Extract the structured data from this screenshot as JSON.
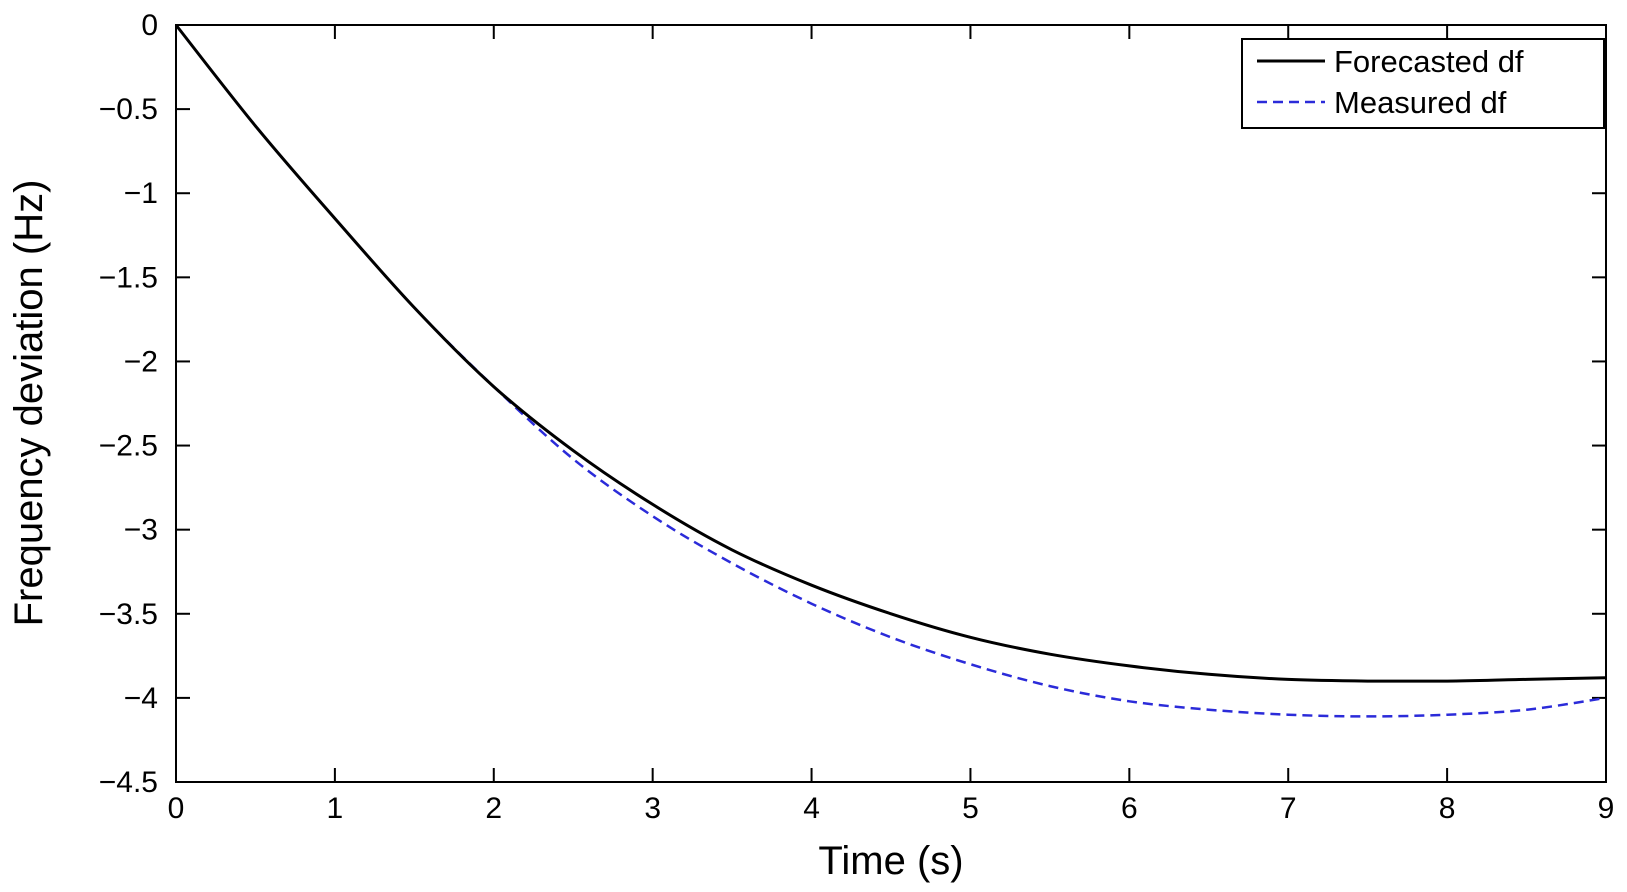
{
  "chart_data": {
    "type": "line",
    "title": "",
    "xlabel": "Time (s)",
    "ylabel": "Frequency deviation (Hz)",
    "xlim": [
      0,
      9
    ],
    "ylim": [
      -4.5,
      0
    ],
    "xticks": [
      0,
      1,
      2,
      3,
      4,
      5,
      6,
      7,
      8,
      9
    ],
    "xtick_labels": [
      "0",
      "1",
      "2",
      "3",
      "4",
      "5",
      "6",
      "7",
      "8",
      "9"
    ],
    "yticks": [
      0,
      -0.5,
      -1,
      -1.5,
      -2,
      -2.5,
      -3,
      -3.5,
      -4,
      -4.5
    ],
    "ytick_labels": [
      "0",
      "−0.5",
      "−1",
      "−1.5",
      "−2",
      "−2.5",
      "−3",
      "−3.5",
      "−4",
      "−4.5"
    ],
    "grid": false,
    "legend_position": "top-right",
    "series": [
      {
        "name": "Forecasted df",
        "color": "#000000",
        "style": "solid",
        "x": [
          0,
          0.5,
          1,
          1.5,
          2,
          2.5,
          3,
          3.5,
          4,
          4.5,
          5,
          5.5,
          6,
          6.5,
          7,
          7.5,
          8,
          8.5,
          9
        ],
        "y": [
          0,
          -0.6,
          -1.15,
          -1.68,
          -2.15,
          -2.53,
          -2.85,
          -3.12,
          -3.33,
          -3.5,
          -3.64,
          -3.74,
          -3.81,
          -3.86,
          -3.89,
          -3.9,
          -3.9,
          -3.89,
          -3.88
        ]
      },
      {
        "name": "Measured df",
        "color": "#2b2bd9",
        "style": "dashed",
        "x": [
          0,
          0.5,
          1,
          1.5,
          2,
          2.5,
          3,
          3.5,
          4,
          4.5,
          5,
          5.5,
          6,
          6.5,
          7,
          7.5,
          8,
          8.5,
          9
        ],
        "y": [
          0,
          -0.6,
          -1.15,
          -1.68,
          -2.15,
          -2.58,
          -2.92,
          -3.2,
          -3.44,
          -3.64,
          -3.8,
          -3.93,
          -4.02,
          -4.07,
          -4.1,
          -4.11,
          -4.1,
          -4.07,
          -4.0
        ]
      }
    ]
  }
}
